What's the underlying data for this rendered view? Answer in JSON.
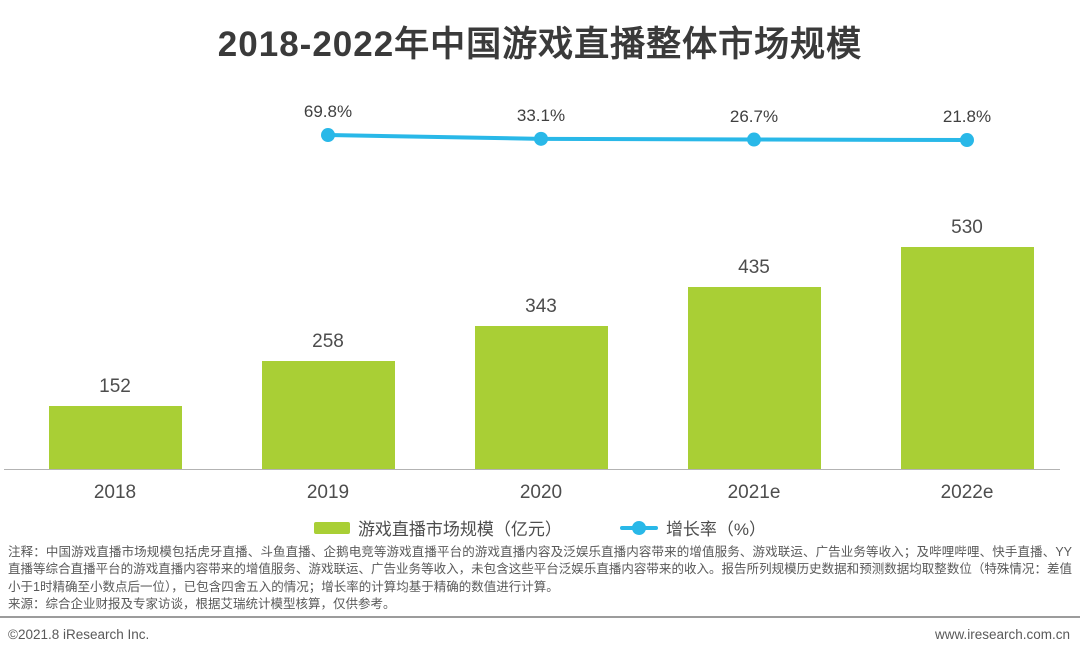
{
  "title": "2018-2022年中国游戏直播整体市场规模",
  "chart_data": {
    "type": "bar",
    "categories": [
      "2018",
      "2019",
      "2020",
      "2021e",
      "2022e"
    ],
    "series": [
      {
        "name": "游戏直播市场规模（亿元）",
        "type": "bar",
        "values": [
          152,
          258,
          343,
          435,
          530
        ],
        "color": "#A9CF35"
      },
      {
        "name": "增长率（%）",
        "type": "line",
        "values": [
          69.8,
          33.1,
          26.7,
          21.8
        ],
        "value_labels": [
          "69.8%",
          "33.1%",
          "26.7%",
          "21.8%"
        ],
        "starts_at_category": "2019",
        "color": "#29B8E8"
      }
    ],
    "xlabel": "",
    "ylabel": "",
    "ylim": [
      0,
      600
    ],
    "grid": false,
    "legend_position": "bottom",
    "value_labels_shown": true
  },
  "legend": {
    "bar_label": "游戏直播市场规模（亿元）",
    "line_label": "增长率（%）"
  },
  "notes": {
    "annotation": "注释：中国游戏直播市场规模包括虎牙直播、斗鱼直播、企鹅电竞等游戏直播平台的游戏直播内容及泛娱乐直播内容带来的增值服务、游戏联运、广告业务等收入；及哔哩哔哩、快手直播、YY直播等综合直播平台的游戏直播内容带来的增值服务、游戏联运、广告业务等收入，未包含这些平台泛娱乐直播内容带来的收入。报告所列规模历史数据和预测数据均取整数位（特殊情况：差值小于1时精确至小数点后一位），已包含四舍五入的情况；增长率的计算均基于精确的数值进行计算。",
    "source": "来源：综合企业财报及专家访谈，根据艾瑞统计模型核算，仅供参考。"
  },
  "footer": {
    "left": "©2021.8 iResearch Inc.",
    "right": "www.iresearch.com.cn"
  },
  "colors": {
    "bar": "#A9CF35",
    "line": "#29B8E8",
    "title_text": "#3A3A3A",
    "label_text": "#4D4D4D",
    "note_text": "#595959",
    "axis_line": "#B3B3B3",
    "divider": "#9C9C9C"
  }
}
